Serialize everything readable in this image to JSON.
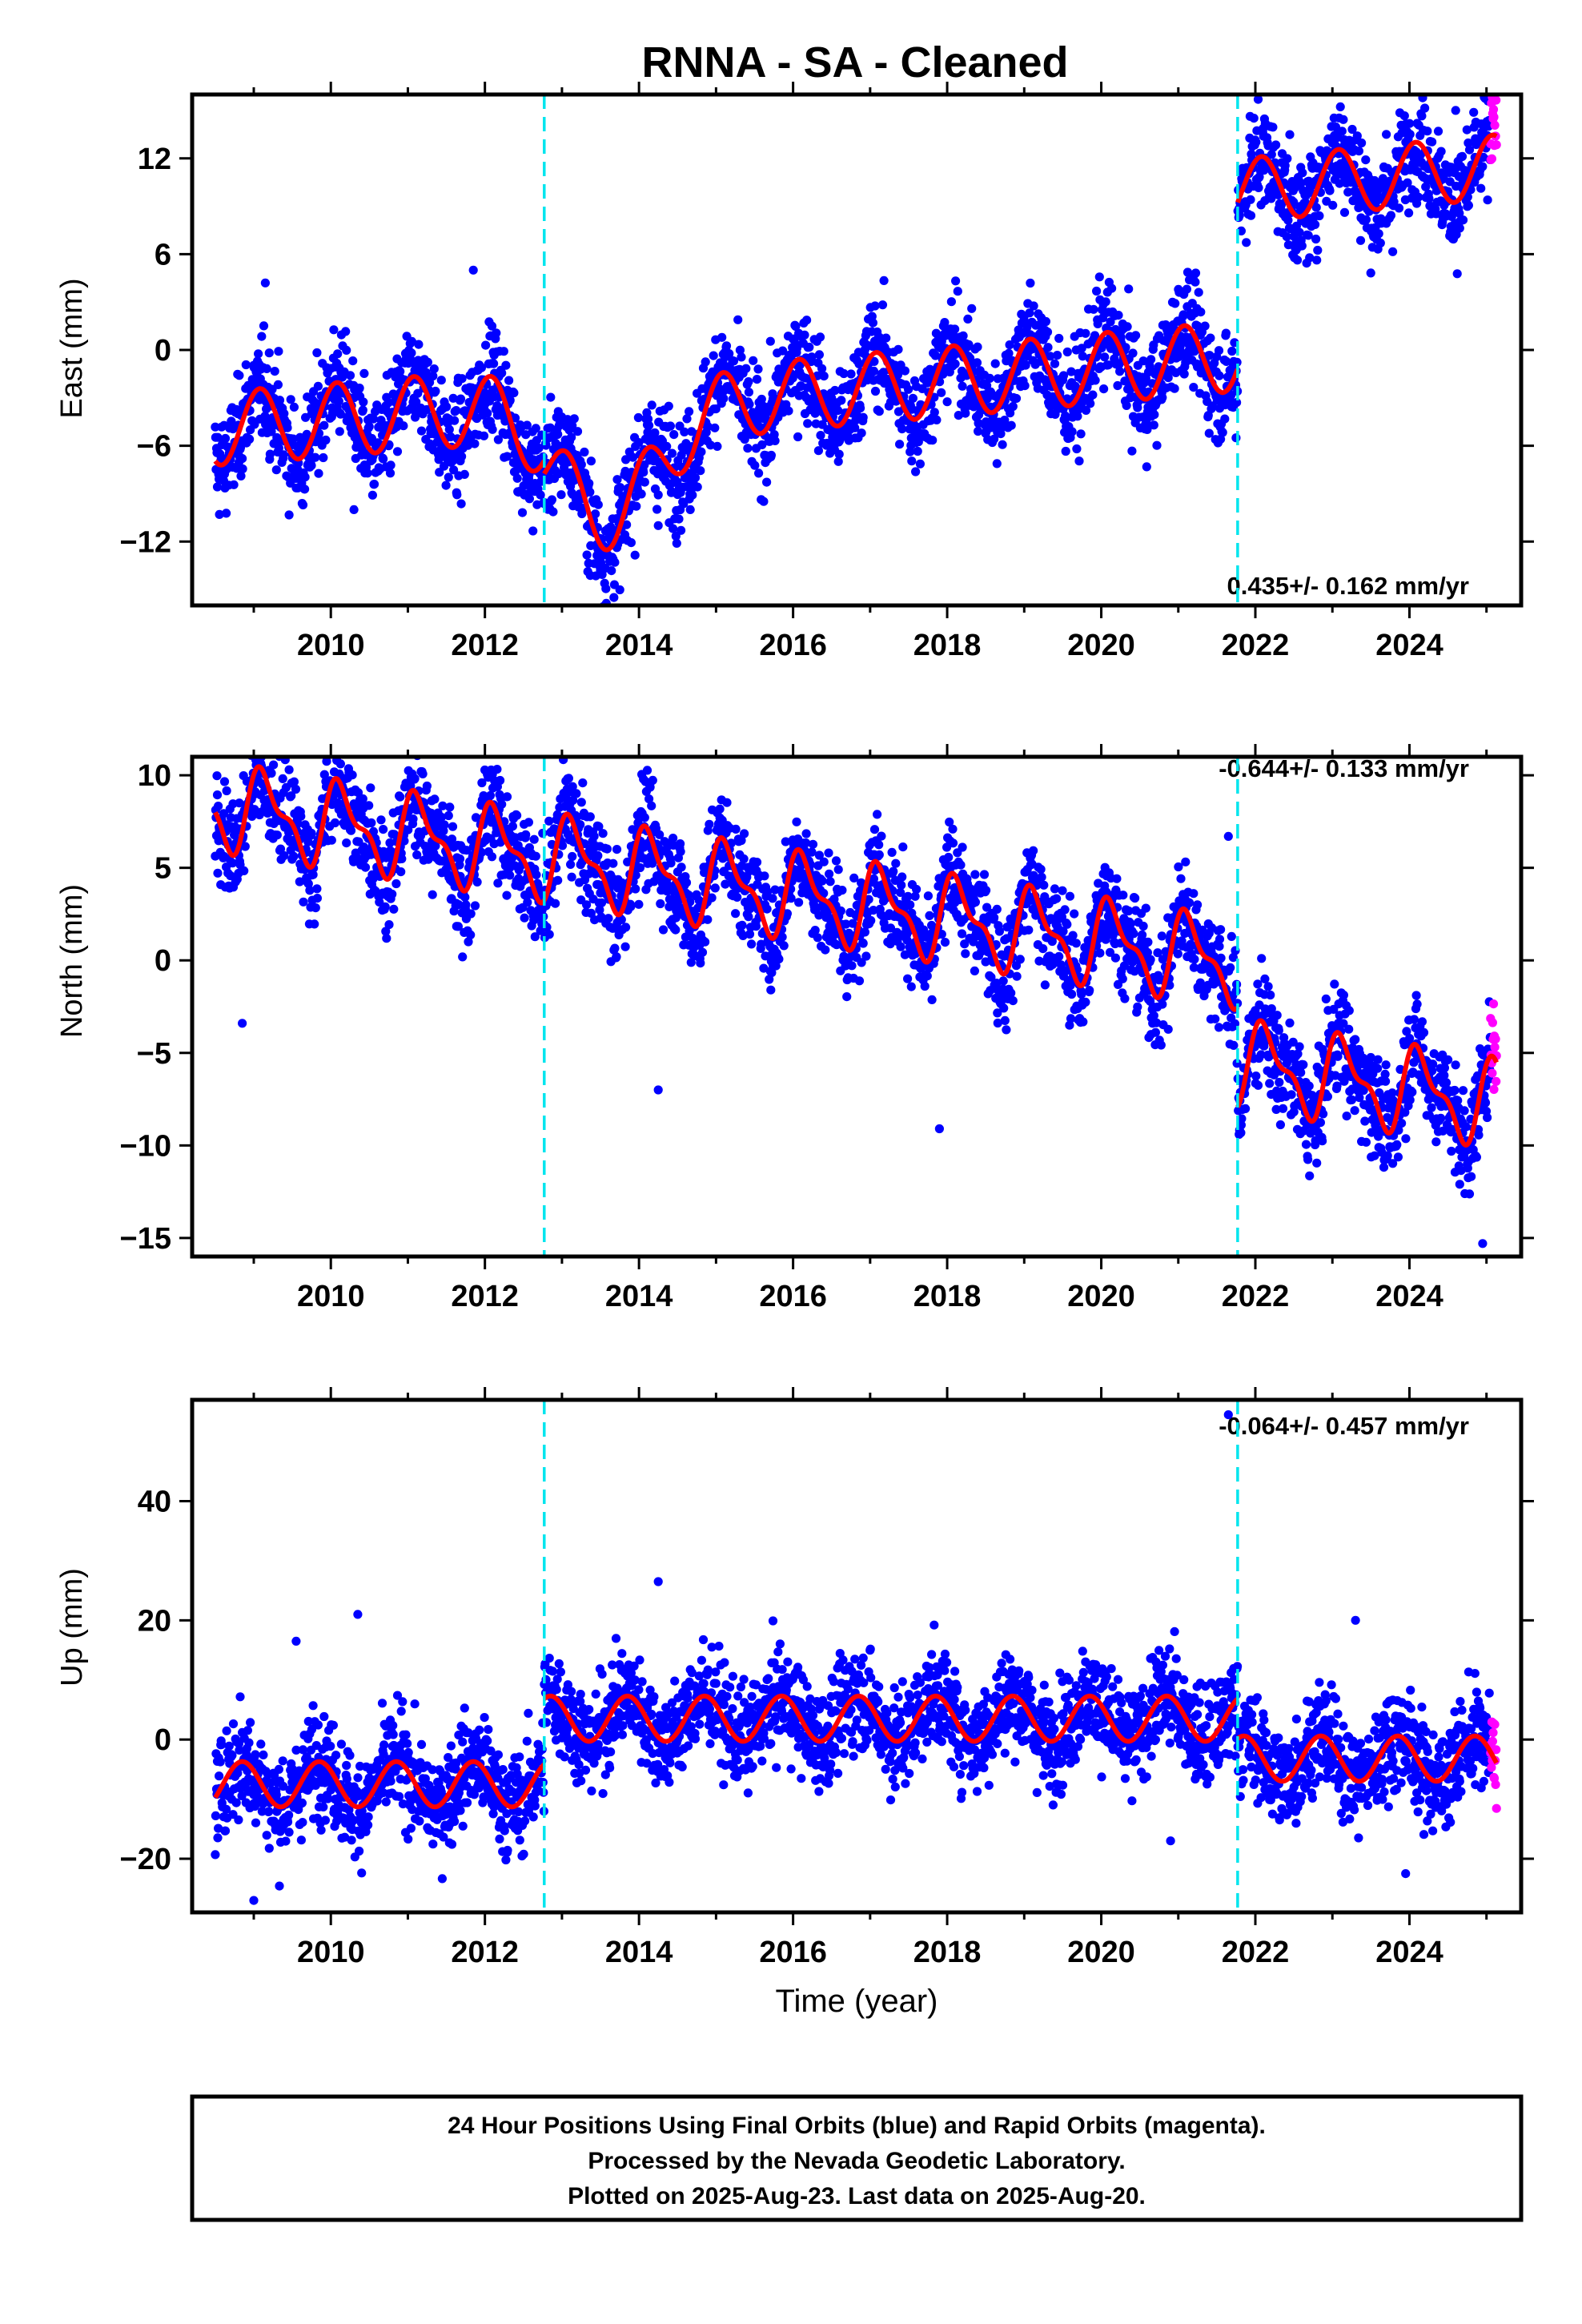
{
  "title": "RNNA  - SA - Cleaned",
  "colors": {
    "final": "#0000ff",
    "rapid": "#ff00ff",
    "model": "#ff0000",
    "break": "#00e5ee",
    "frame": "#000000"
  },
  "chart_data": [
    {
      "type": "scatter",
      "name": "east",
      "ylabel": "East (mm)",
      "xlabel": "",
      "xlim": [
        2008.7,
        2025.95
      ],
      "ylim": [
        -16,
        16
      ],
      "xticks": [
        "2010",
        "2012",
        "2014",
        "2016",
        "2018",
        "2020",
        "2022",
        "2024"
      ],
      "yticks": [
        "12",
        "6",
        "0",
        "−6",
        "−12"
      ],
      "ytick_values": [
        12,
        6,
        0,
        -6,
        -12
      ],
      "rate": "0.435+/- 0.162 mm/yr",
      "rate_position": "bottom-right",
      "breaks": [
        2013.27,
        2022.27
      ],
      "rapid_start": 2025.55,
      "model": {
        "segments": [
          {
            "start": 2009.0,
            "end": 2013.27,
            "offset": -1.9,
            "slope": 0.38,
            "amp": 2.3,
            "phase": 2009.33
          },
          {
            "start": 2013.27,
            "end": 2022.27,
            "offset": -2.6,
            "slope": 0.42,
            "amp": 2.2,
            "phase": 2009.33
          },
          {
            "start": 2022.27,
            "end": 2025.63,
            "offset": 7.6,
            "slope": 0.45,
            "amp": 2.0,
            "phase": 2009.33
          }
        ],
        "dip": {
          "center": 2014.1,
          "width": 0.9,
          "depth": -6.5
        }
      },
      "noise_sd": 1.6,
      "outliers": [
        [
          2009.65,
          4.2
        ],
        [
          2010.8,
          -10
        ],
        [
          2012.35,
          5
        ],
        [
          2014.75,
          -11
        ],
        [
          2024.2,
          13.5
        ],
        [
          2025.1,
          15
        ],
        [
          2022.25,
          -5.5
        ]
      ]
    },
    {
      "type": "scatter",
      "name": "north",
      "ylabel": "North (mm)",
      "xlabel": "",
      "xlim": [
        2008.7,
        2025.95
      ],
      "ylim": [
        -16,
        11
      ],
      "xticks": [
        "2010",
        "2012",
        "2014",
        "2016",
        "2018",
        "2020",
        "2022",
        "2024"
      ],
      "yticks": [
        "10",
        "5",
        "0",
        "−5",
        "−10",
        "−15"
      ],
      "ytick_values": [
        10,
        5,
        0,
        -5,
        -10,
        -15
      ],
      "rate": "-0.644+/- 0.133 mm/yr",
      "rate_position": "top-right",
      "breaks": [
        2013.27,
        2022.27
      ],
      "rapid_start": 2025.55,
      "model": {
        "segments": [
          {
            "start": 2009.0,
            "end": 2013.27,
            "offset": 3.2,
            "slope": -0.64,
            "amp": 2.0,
            "phase": 2009.4
          },
          {
            "start": 2013.27,
            "end": 2022.27,
            "offset": 3.2,
            "slope": -0.64,
            "amp": 2.0,
            "phase": 2009.4
          },
          {
            "start": 2022.27,
            "end": 2025.63,
            "offset": -2.2,
            "slope": -0.64,
            "amp": 2.0,
            "phase": 2009.4
          }
        ],
        "dip": null
      },
      "noise_sd": 1.4,
      "outliers": [
        [
          2009.35,
          -3.4
        ],
        [
          2009.6,
          10.5
        ],
        [
          2014.75,
          -7
        ],
        [
          2015.55,
          7.7
        ],
        [
          2018.4,
          -9.1
        ],
        [
          2022.15,
          6.7
        ],
        [
          2025.45,
          -15.3
        ]
      ]
    },
    {
      "type": "scatter",
      "name": "up",
      "ylabel": "Up (mm)",
      "xlabel": "Time (year)",
      "xlim": [
        2008.7,
        2025.95
      ],
      "ylim": [
        -29,
        57
      ],
      "xticks": [
        "2010",
        "2012",
        "2014",
        "2016",
        "2018",
        "2020",
        "2022",
        "2024"
      ],
      "yticks": [
        "40",
        "20",
        "0",
        "−20"
      ],
      "ytick_values": [
        40,
        20,
        0,
        -20
      ],
      "rate": "-0.064+/- 0.457 mm/yr",
      "rate_position": "top-right",
      "breaks": [
        2013.27,
        2022.27
      ],
      "rapid_start": 2025.55,
      "model": {
        "segments": [
          {
            "start": 2009.0,
            "end": 2013.27,
            "offset": -7.5,
            "slope": 0.0,
            "amp": 3.8,
            "phase": 2009.1
          },
          {
            "start": 2013.27,
            "end": 2022.27,
            "offset": 3.5,
            "slope": 0.0,
            "amp": 3.8,
            "phase": 2009.1
          },
          {
            "start": 2022.27,
            "end": 2025.63,
            "offset": -3.2,
            "slope": 0.0,
            "amp": 3.8,
            "phase": 2009.1
          }
        ],
        "dip": null
      },
      "noise_sd": 4.2,
      "outliers": [
        [
          2009.5,
          -27
        ],
        [
          2010.85,
          21
        ],
        [
          2010.05,
          16.5
        ],
        [
          2014.75,
          26.5
        ],
        [
          2023.8,
          20
        ],
        [
          2024.45,
          -22.5
        ],
        [
          2022.15,
          54.5
        ],
        [
          2021.4,
          -17
        ]
      ]
    }
  ],
  "footer": {
    "line1": "24 Hour Positions Using Final Orbits (blue) and Rapid Orbits (magenta).",
    "line2": "Processed by the Nevada Geodetic Laboratory.",
    "line3": "Plotted on 2025-Aug-23. Last data on 2025-Aug-20."
  }
}
